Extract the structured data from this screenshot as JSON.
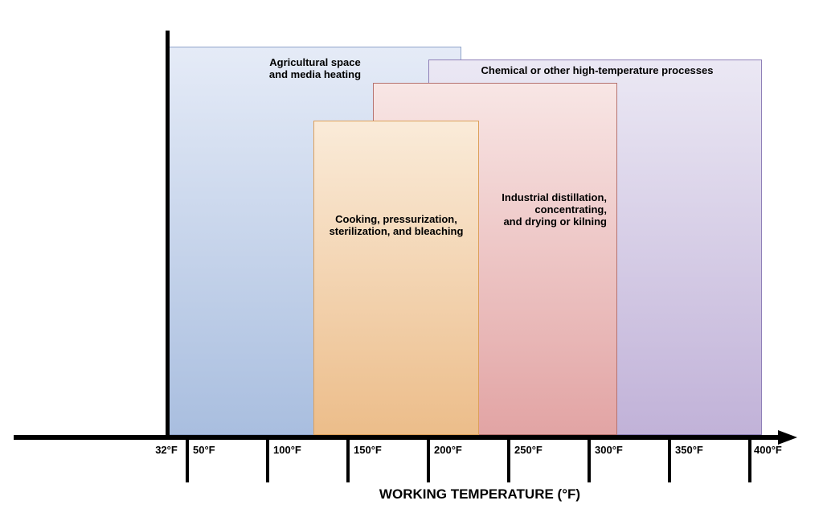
{
  "figure": {
    "background": "#ffffff",
    "axis_color": "#000000",
    "xlabel": "WORKING TEMPERATURE (°F)"
  },
  "boxes": {
    "agricultural": {
      "label": "Agricultural space\nand media heating",
      "fill_top": "#e5ebf7",
      "fill_bottom": "#a9bedf",
      "border": "#90a4ca"
    },
    "chemical": {
      "label": "Chemical or other high-temperature processes",
      "fill_top": "#ebe8f4",
      "fill_bottom": "#c1b2d8",
      "border": "#8f80b8"
    },
    "industrial": {
      "label": "Industrial distillation,\nconcentrating,\nand drying or kilning",
      "fill_top": "#f8e6e5",
      "fill_bottom": "#e2a4a4",
      "border": "#b5726f"
    },
    "cooking": {
      "label": "Cooking, pressurization,\nsterilization, and bleaching",
      "fill_top": "#faebd9",
      "fill_bottom": "#ecbd8a",
      "border": "#dda05b"
    }
  },
  "axis": {
    "title": "WORKING TEMPERATURE (°F)",
    "ticks": [
      {
        "label": "32°F"
      },
      {
        "label": "50°F"
      },
      {
        "label": "100°F"
      },
      {
        "label": "150°F"
      },
      {
        "label": "200°F"
      },
      {
        "label": "250°F"
      },
      {
        "label": "300°F"
      },
      {
        "label": "350°F"
      },
      {
        "label": "400°F"
      }
    ]
  },
  "chart_data": {
    "type": "bar",
    "subtype": "horizontal-temperature-range",
    "title": "",
    "xlabel": "WORKING TEMPERATURE (°F)",
    "ylabel": "",
    "x_tick_labels": [
      "32°F",
      "50°F",
      "100°F",
      "150°F",
      "200°F",
      "250°F",
      "300°F",
      "350°F",
      "400°F"
    ],
    "x_tick_values_f": [
      32,
      50,
      100,
      150,
      200,
      250,
      300,
      350,
      400
    ],
    "xlim": [
      32,
      405
    ],
    "grid": false,
    "legend": false,
    "series": [
      {
        "name": "Agricultural space and media heating",
        "temp_range_f": [
          32,
          220
        ],
        "fill_top": "#e5ebf7",
        "fill_bottom": "#a9bedf",
        "border": "#90a4ca"
      },
      {
        "name": "Cooking, pressurization, sterilization, and bleaching",
        "temp_range_f": [
          130,
          230
        ],
        "fill_top": "#faebd9",
        "fill_bottom": "#ecbd8a",
        "border": "#dda05b"
      },
      {
        "name": "Industrial distillation, concentrating, and drying or kilning",
        "temp_range_f": [
          165,
          315
        ],
        "fill_top": "#f8e6e5",
        "fill_bottom": "#e2a4a4",
        "border": "#b5726f"
      },
      {
        "name": "Chemical or other high-temperature processes",
        "temp_range_f": [
          200,
          405
        ],
        "fill_top": "#ebe8f4",
        "fill_bottom": "#c1b2d8",
        "border": "#8f80b8"
      }
    ]
  }
}
